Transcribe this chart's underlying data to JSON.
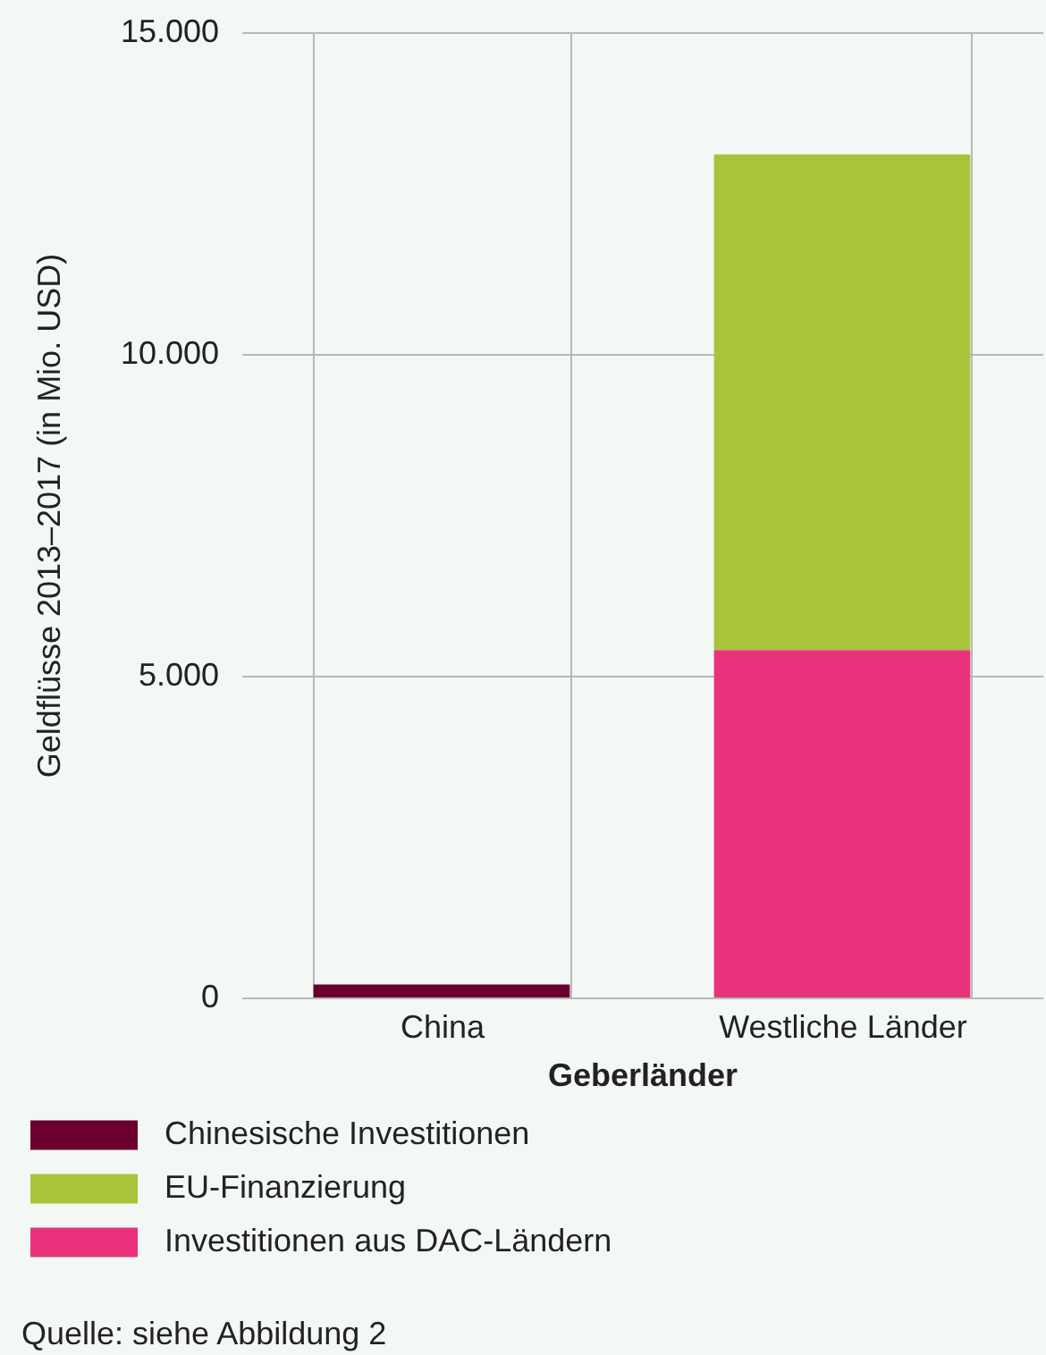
{
  "chart_data": {
    "type": "bar",
    "stacked": true,
    "xlabel": "Geberländer",
    "ylabel": "Geldflüsse 2013–2017 (in Mio. USD)",
    "categories": [
      "China",
      "Westliche Länder"
    ],
    "series": [
      {
        "name": "Investitionen aus DAC-Ländern",
        "color": "#e8337c",
        "values": [
          null,
          5400
        ]
      },
      {
        "name": "EU-Finanzierung",
        "color": "#a9c43a",
        "values": [
          null,
          7700
        ]
      },
      {
        "name": "Chinesische Investitionen",
        "color": "#6b0030",
        "values": [
          200,
          null
        ]
      }
    ],
    "ylim": [
      0,
      15000
    ],
    "yticks": [
      0,
      {
        "value": 5000,
        "label": "5.000"
      },
      {
        "value": 10000,
        "label": "10.000"
      },
      {
        "value": 15000,
        "label": "15.000"
      }
    ],
    "grid": true,
    "legend": "bottom left",
    "annotations": [
      "Quelle: siehe Abbildung 2"
    ]
  }
}
